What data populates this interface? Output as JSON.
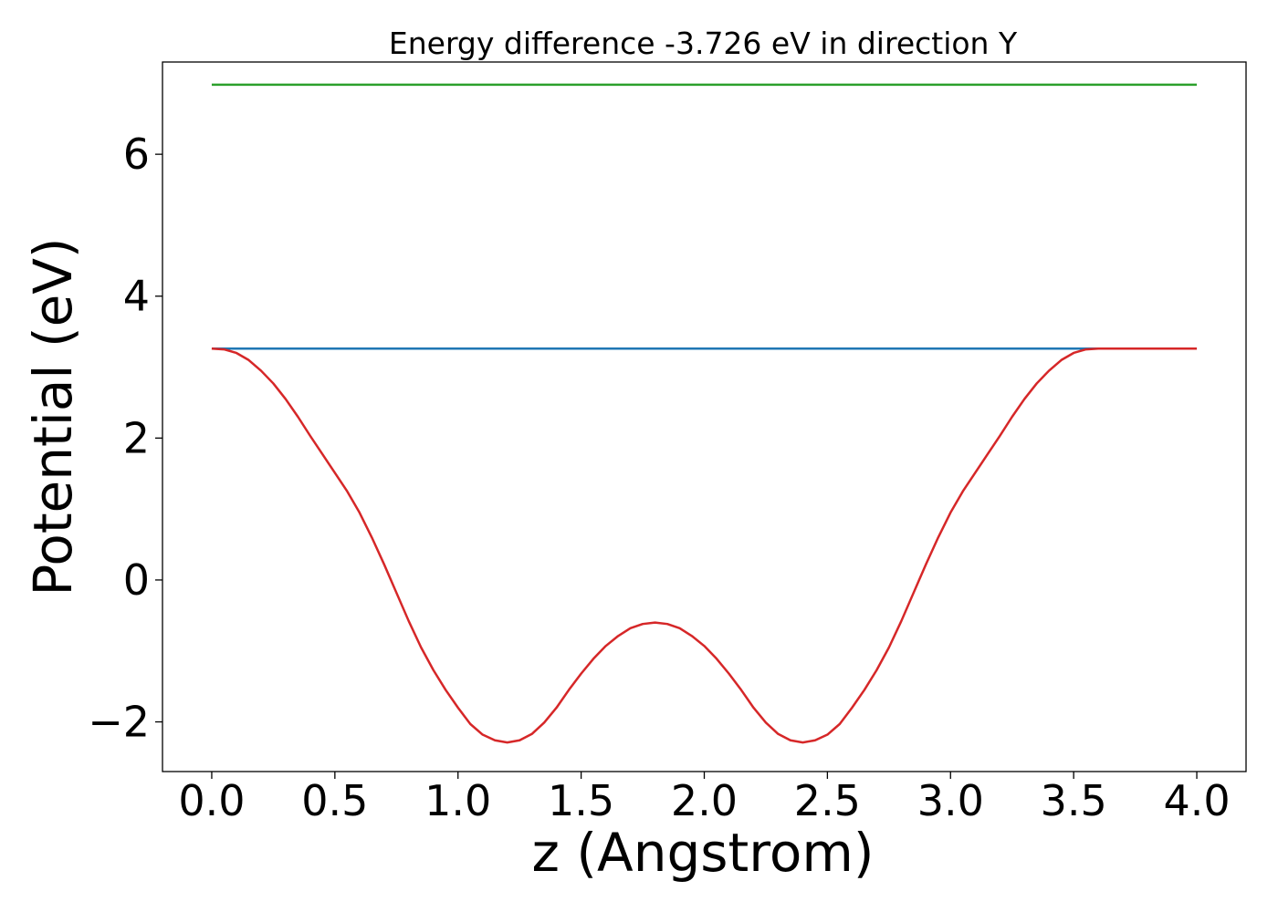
{
  "chart_data": {
    "type": "line",
    "title": "Energy difference -3.726 eV in direction Y",
    "xlabel": "z (Angstrom)",
    "ylabel": "Potential (eV)",
    "xlim": [
      -0.2,
      4.2
    ],
    "ylim": [
      -2.7,
      7.3
    ],
    "xticks": [
      0.0,
      0.5,
      1.0,
      1.5,
      2.0,
      2.5,
      3.0,
      3.5,
      4.0
    ],
    "xtick_labels": [
      "0.0",
      "0.5",
      "1.0",
      "1.5",
      "2.0",
      "2.5",
      "3.0",
      "3.5",
      "4.0"
    ],
    "yticks": [
      -2,
      0,
      2,
      4,
      6
    ],
    "ytick_labels": [
      "−2",
      "0",
      "2",
      "4",
      "6"
    ],
    "grid": false,
    "legend": false,
    "series": [
      {
        "color": "#d62728",
        "x": [
          0.0,
          0.05,
          0.1,
          0.15,
          0.2,
          0.25,
          0.3,
          0.35,
          0.4,
          0.45,
          0.5,
          0.55,
          0.6,
          0.65,
          0.7,
          0.75,
          0.8,
          0.85,
          0.9,
          0.95,
          1.0,
          1.05,
          1.1,
          1.15,
          1.2,
          1.25,
          1.3,
          1.35,
          1.4,
          1.45,
          1.5,
          1.55,
          1.6,
          1.65,
          1.7,
          1.75,
          1.8,
          1.85,
          1.9,
          1.95,
          2.0,
          2.05,
          2.1,
          2.15,
          2.2,
          2.25,
          2.3,
          2.35,
          2.4,
          2.45,
          2.5,
          2.55,
          2.6,
          2.65,
          2.7,
          2.75,
          2.8,
          2.85,
          2.9,
          2.95,
          3.0,
          3.05,
          3.1,
          3.15,
          3.2,
          3.25,
          3.3,
          3.35,
          3.4,
          3.45,
          3.5,
          3.55,
          3.6,
          3.65,
          3.7,
          3.75,
          3.8,
          3.85,
          3.9,
          3.95,
          4.0
        ],
        "y": [
          3.26,
          3.25,
          3.2,
          3.1,
          2.95,
          2.77,
          2.55,
          2.3,
          2.03,
          1.77,
          1.51,
          1.25,
          0.95,
          0.6,
          0.22,
          -0.18,
          -0.58,
          -0.95,
          -1.27,
          -1.55,
          -1.8,
          -2.03,
          -2.18,
          -2.26,
          -2.29,
          -2.26,
          -2.17,
          -2.01,
          -1.8,
          -1.55,
          -1.32,
          -1.11,
          -0.93,
          -0.79,
          -0.68,
          -0.62,
          -0.6,
          -0.62,
          -0.68,
          -0.79,
          -0.93,
          -1.11,
          -1.32,
          -1.55,
          -1.8,
          -2.01,
          -2.17,
          -2.26,
          -2.29,
          -2.26,
          -2.18,
          -2.03,
          -1.8,
          -1.55,
          -1.27,
          -0.95,
          -0.58,
          -0.18,
          0.22,
          0.6,
          0.95,
          1.25,
          1.51,
          1.77,
          2.03,
          2.3,
          2.55,
          2.77,
          2.95,
          3.1,
          3.2,
          3.25,
          3.26,
          3.26,
          3.26,
          3.26,
          3.26,
          3.26,
          3.26,
          3.26,
          3.26
        ]
      },
      {
        "color": "#1f77b4",
        "x": [
          0.0,
          4.0
        ],
        "y": [
          3.26,
          3.26
        ]
      },
      {
        "color": "#2ca02c",
        "x": [
          0.0,
          4.0
        ],
        "y": [
          6.98,
          6.98
        ]
      }
    ]
  }
}
